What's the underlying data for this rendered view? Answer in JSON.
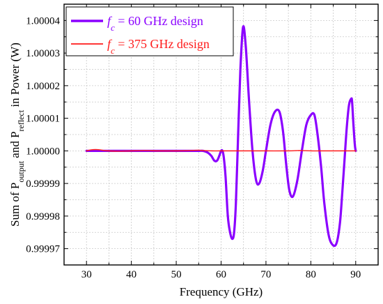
{
  "chart_data": {
    "type": "line",
    "xlabel": "Frequency (GHz)",
    "ylabel": {
      "p1": "Sum of P",
      "s1": "output",
      "p2": " and P",
      "s2": "reflect",
      "p3": " in Power (W)"
    },
    "xlim": [
      25,
      95
    ],
    "ylim": [
      0.999965,
      1.000045
    ],
    "x_ticks": [
      30,
      40,
      50,
      60,
      70,
      80,
      90
    ],
    "y_ticks": [
      0.99997,
      0.99998,
      0.99999,
      1.0,
      1.00001,
      1.00002,
      1.00003,
      1.00004
    ],
    "y_tick_labels": [
      "0.99997",
      "0.99998",
      "0.99999",
      "1.00000",
      "1.00001",
      "1.00002",
      "1.00003",
      "1.00004"
    ],
    "grid": true,
    "legend_position": "top-left",
    "series": [
      {
        "legend": {
          "var": "f",
          "sub": "c",
          "rest": " = 60 GHz design"
        },
        "color": "#8B00FF",
        "x": [
          30,
          32,
          35,
          40,
          45,
          50,
          52,
          54,
          55,
          56,
          57,
          57.8,
          58.5,
          59.1,
          59.6,
          60,
          60.3,
          60.6,
          61,
          61.5,
          62,
          62.5,
          62.9,
          63.3,
          63.8,
          64.3,
          64.9,
          65.5,
          66.2,
          67,
          67.8,
          68.5,
          69.3,
          70,
          71,
          72,
          73,
          73.8,
          74.5,
          75.2,
          76,
          77,
          78,
          79,
          80,
          80.8,
          81.5,
          82.3,
          83,
          84,
          85,
          85.8,
          86.5,
          87,
          87.5,
          88,
          88.5,
          89,
          89.2,
          89.5,
          89.8,
          90
        ],
        "y": [
          1.0,
          1.0,
          1.0,
          1.0,
          1.0,
          1.0,
          1.0,
          1.0,
          1.0,
          1.0,
          0.9999995,
          0.9999985,
          0.999997,
          0.999997,
          0.9999985,
          1.0,
          1.0,
          0.999998,
          0.999992,
          0.99998,
          0.999975,
          0.999973,
          0.999975,
          0.999984,
          1.000005,
          1.000025,
          1.000038,
          1.000032,
          1.000016,
          1.0,
          0.999991,
          0.99999,
          0.999994,
          1.0,
          1.000008,
          1.000012,
          1.000012,
          1.000006,
          0.999996,
          0.999988,
          0.999986,
          0.999991,
          1.0,
          1.000008,
          1.000011,
          1.000011,
          1.000005,
          0.999995,
          0.999984,
          0.999974,
          0.999971,
          0.999972,
          0.999978,
          0.999987,
          0.999997,
          1.000007,
          1.000014,
          1.000016,
          1.000015,
          1.000008,
          1.000002,
          1.0
        ]
      },
      {
        "legend": {
          "var": "f",
          "sub": "c",
          "rest": " = 375 GHz design"
        },
        "color": "#FF1A1A",
        "x": [
          30,
          31,
          32,
          33,
          34,
          35,
          37,
          40,
          43,
          46,
          50,
          53,
          55,
          56,
          58,
          60,
          65,
          70,
          75,
          77,
          78,
          80,
          82,
          85,
          88,
          90
        ],
        "y": [
          1.0,
          1.0000003,
          1.0000004,
          1.0000003,
          1.0000001,
          1.0,
          0.9999999,
          1.0,
          1.0000001,
          1.0,
          1.0,
          1.0000001,
          1.0000002,
          1.0000001,
          1.0,
          1.0,
          1.0,
          1.0,
          1.0,
          1.0000001,
          1.0000001,
          1.0,
          1.0,
          1.0,
          1.0,
          1.0
        ]
      }
    ]
  }
}
